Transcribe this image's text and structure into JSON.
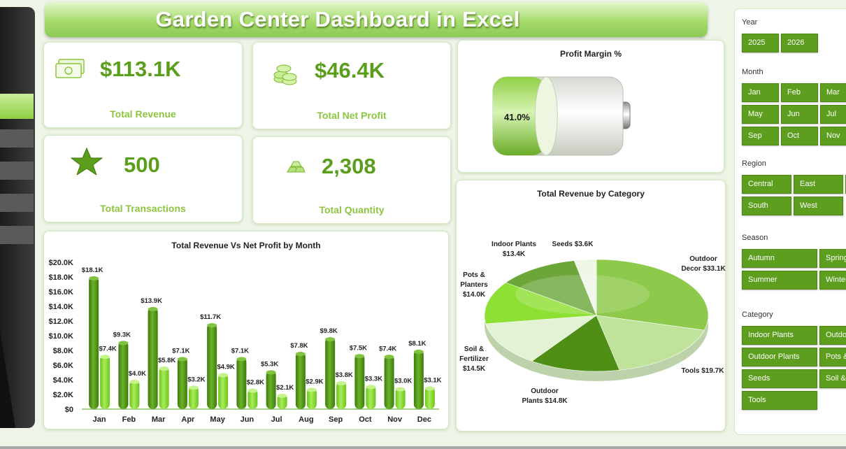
{
  "header": {
    "title": "Garden Center Dashboard in Excel"
  },
  "kpis": [
    {
      "value": "$113.1K",
      "label": "Total Revenue",
      "icon": "money-icon"
    },
    {
      "value": "$46.4K",
      "label": "Total Net Profit",
      "icon": "coins-icon"
    },
    {
      "value": "500",
      "label": "Total Transactions",
      "icon": "star-icon"
    },
    {
      "value": "2,308",
      "label": "Total Quantity",
      "icon": "gold-bars-icon"
    }
  ],
  "profit_margin": {
    "title": "Profit Margin %",
    "value": "41.0%",
    "fraction": 0.41
  },
  "colors": {
    "accent": "#5e9e1e",
    "light": "#8cc63f",
    "bar_dark": "#4f8f16",
    "bar_light": "#7ed321"
  },
  "slicers": {
    "year": {
      "label": "Year",
      "items": [
        "2025",
        "2026"
      ]
    },
    "month": {
      "label": "Month",
      "items": [
        "Jan",
        "Feb",
        "Mar",
        "May",
        "Jun",
        "Jul",
        "Sep",
        "Oct",
        "Nov"
      ]
    },
    "region": {
      "label": "Region",
      "items": [
        "Central",
        "East",
        "South",
        "West"
      ]
    },
    "season": {
      "label": "Season",
      "items": [
        "Autumn",
        "Spring",
        "Summer",
        "Winter"
      ]
    },
    "category": {
      "label": "Category",
      "items": [
        "Indoor Plants",
        "Outdoor",
        "Outdoor Plants",
        "Pots &",
        "Seeds",
        "Soil &",
        "Tools"
      ]
    }
  },
  "chart_data": [
    {
      "type": "bar",
      "title": "Total Revenue Vs  Net Profit by Month",
      "categories": [
        "Jan",
        "Feb",
        "Mar",
        "Apr",
        "May",
        "Jun",
        "Jul",
        "Aug",
        "Sep",
        "Oct",
        "Nov",
        "Dec"
      ],
      "series": [
        {
          "values": [
            18.1,
            9.3,
            13.9,
            7.1,
            11.7,
            7.1,
            5.3,
            7.8,
            9.8,
            7.5,
            7.4,
            8.1
          ],
          "labels": [
            "$18.1K",
            "$9.3K",
            "$13.9K",
            "$7.1K",
            "$11.7K",
            "$7.1K",
            "$5.3K",
            "$7.8K",
            "$9.8K",
            "$7.5K",
            "$7.4K",
            "$8.1K"
          ]
        },
        {
          "values": [
            7.4,
            4.0,
            5.8,
            3.2,
            4.9,
            2.8,
            2.1,
            2.9,
            3.8,
            3.3,
            3.0,
            3.1
          ],
          "labels": [
            "$7.4K",
            "$4.0K",
            "$5.8K",
            "$3.2K",
            "$4.9K",
            "$2.8K",
            "$2.1K",
            "$2.9K",
            "$3.8K",
            "$3.3K",
            "$3.0K",
            "$3.1K"
          ]
        }
      ],
      "yticks": [
        "$0",
        "$2.0K",
        "$4.0K",
        "$6.0K",
        "$8.0K",
        "$10.0K",
        "$12.0K",
        "$14.0K",
        "$16.0K",
        "$18.0K",
        "$20.0K"
      ],
      "ylim": [
        0,
        20
      ],
      "grid": false
    },
    {
      "type": "pie",
      "title": "Total Revenue by Category",
      "slices": [
        {
          "name": "Outdoor Decor",
          "value": 33.1,
          "label": "$33.1K",
          "color": "#8dc94a"
        },
        {
          "name": "Tools",
          "value": 19.7,
          "label": "$19.7K",
          "color": "#bfe39a"
        },
        {
          "name": "Outdoor Plants",
          "value": 14.8,
          "label": "$14.8K",
          "color": "#4f8f16"
        },
        {
          "name": "Soil & Fertilizer",
          "value": 14.5,
          "label": "$14.5K",
          "color": "#e4f2d4"
        },
        {
          "name": "Pots & Planters",
          "value": 14.0,
          "label": "$14.0K",
          "color": "#8ee034"
        },
        {
          "name": "Indoor Plants",
          "value": 13.4,
          "label": "$13.4K",
          "color": "#6ca63a"
        },
        {
          "name": "Seeds",
          "value": 3.6,
          "label": "$3.6K",
          "color": "#eef6e4"
        }
      ]
    }
  ]
}
